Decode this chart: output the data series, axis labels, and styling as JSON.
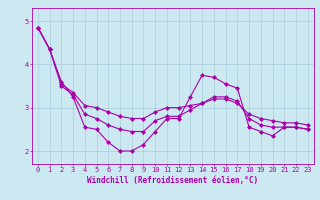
{
  "background_color": "#cce8f0",
  "grid_color": "#aaccdd",
  "line_color": "#aa00aa",
  "marker": "D",
  "markersize": 2.0,
  "linewidth": 0.8,
  "xlabel": "Windchill (Refroidissement éolien,°C)",
  "xlabel_fontsize": 5.5,
  "tick_fontsize": 5.0,
  "xlim": [
    -0.5,
    23.5
  ],
  "ylim": [
    1.7,
    5.3
  ],
  "yticks": [
    2,
    3,
    4,
    5
  ],
  "xticks": [
    0,
    1,
    2,
    3,
    4,
    5,
    6,
    7,
    8,
    9,
    10,
    11,
    12,
    13,
    14,
    15,
    16,
    17,
    18,
    19,
    20,
    21,
    22,
    23
  ],
  "curves": {
    "line1": {
      "x": [
        0,
        1,
        2,
        3,
        4,
        5,
        6,
        7,
        8,
        9,
        10,
        11,
        12,
        13,
        14,
        15,
        16,
        17,
        18,
        19,
        20,
        21,
        22,
        23
      ],
      "y": [
        4.85,
        4.35,
        3.6,
        3.25,
        2.55,
        2.5,
        2.2,
        2.0,
        2.0,
        2.15,
        2.45,
        2.75,
        2.75,
        3.25,
        3.75,
        3.7,
        3.55,
        3.45,
        2.55,
        2.45,
        2.35,
        2.55,
        2.55,
        2.5
      ]
    },
    "line2": {
      "x": [
        0,
        1,
        2,
        3,
        4,
        5,
        6,
        7,
        8,
        9,
        10,
        11,
        12,
        13,
        14,
        15,
        16,
        17,
        18,
        19,
        20,
        21,
        22,
        23
      ],
      "y": [
        4.85,
        4.35,
        3.5,
        3.3,
        2.85,
        2.75,
        2.6,
        2.5,
        2.45,
        2.45,
        2.7,
        2.8,
        2.8,
        2.95,
        3.1,
        3.25,
        3.25,
        3.15,
        2.75,
        2.6,
        2.55,
        2.55,
        2.55,
        2.5
      ]
    },
    "line3": {
      "x": [
        0,
        1,
        2,
        3,
        4,
        5,
        6,
        7,
        8,
        9,
        10,
        11,
        12,
        13,
        14,
        15,
        16,
        17,
        18,
        19,
        20,
        21,
        22,
        23
      ],
      "y": [
        4.85,
        4.35,
        3.55,
        3.35,
        3.05,
        3.0,
        2.9,
        2.8,
        2.75,
        2.75,
        2.9,
        3.0,
        3.0,
        3.05,
        3.1,
        3.2,
        3.2,
        3.1,
        2.85,
        2.75,
        2.7,
        2.65,
        2.65,
        2.6
      ]
    }
  }
}
